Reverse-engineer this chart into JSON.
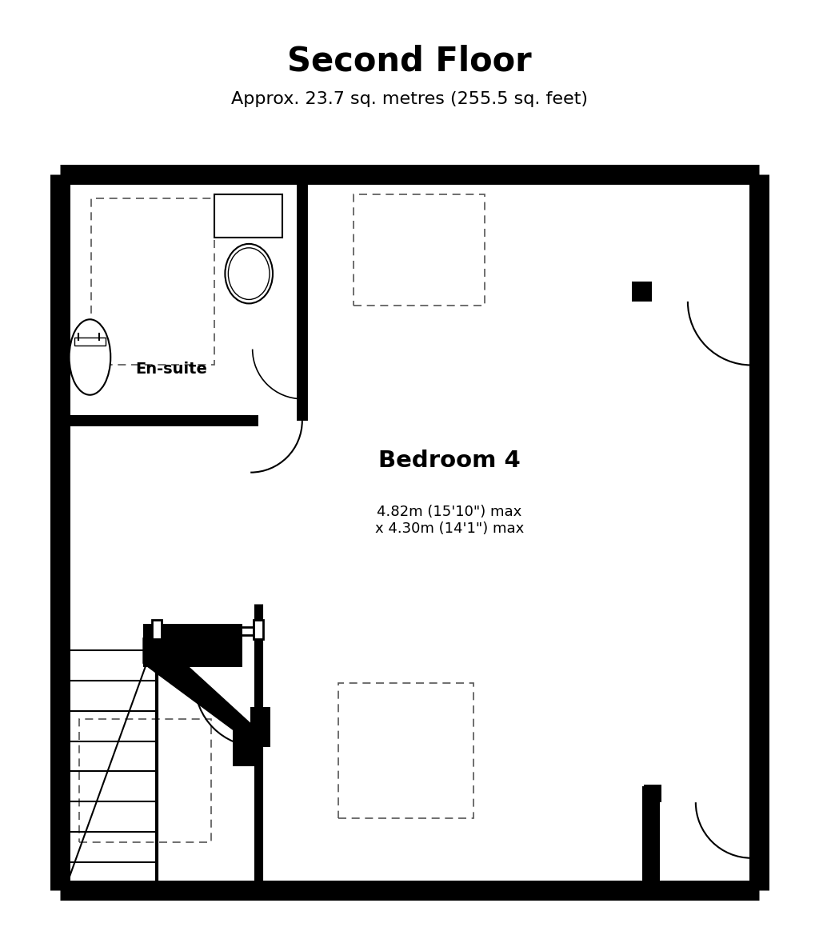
{
  "title": "Second Floor",
  "subtitle": "Approx. 23.7 sq. metres (255.5 sq. feet)",
  "room_label": "Bedroom 4",
  "room_dims": "4.82m (15'10\") max\nx 4.30m (14'1\") max",
  "ensuite_label": "En-suite",
  "bg_color": "#ffffff",
  "wall_color": "#000000",
  "floor_color": "#ffffff",
  "dashed_color": "#888888",
  "thin_wall": "#000000"
}
